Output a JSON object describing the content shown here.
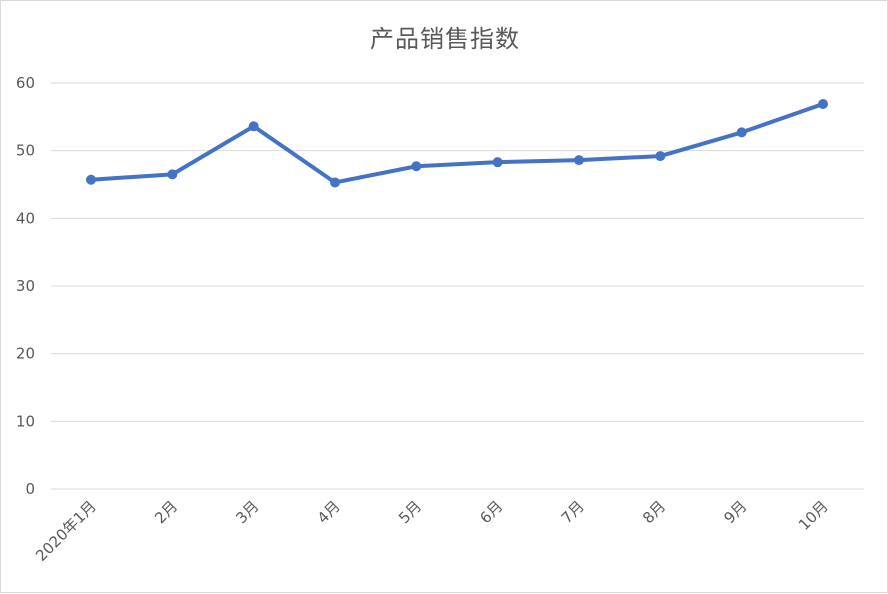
{
  "chart_data": {
    "type": "line",
    "title": "产品销售指数",
    "xlabel": "",
    "ylabel": "",
    "categories": [
      "2020年1月",
      "2月",
      "3月",
      "4月",
      "5月",
      "6月",
      "7月",
      "8月",
      "9月",
      "10月"
    ],
    "series": [
      {
        "values": [
          45.7,
          46.5,
          53.6,
          45.3,
          47.7,
          48.3,
          48.6,
          49.2,
          52.7,
          56.9
        ],
        "color": "#4472c4"
      }
    ],
    "ylim": [
      0,
      60
    ],
    "yticks": [
      0,
      10,
      20,
      30,
      40,
      50,
      60
    ],
    "grid": "horizontal",
    "legend": "none",
    "markers": true
  }
}
